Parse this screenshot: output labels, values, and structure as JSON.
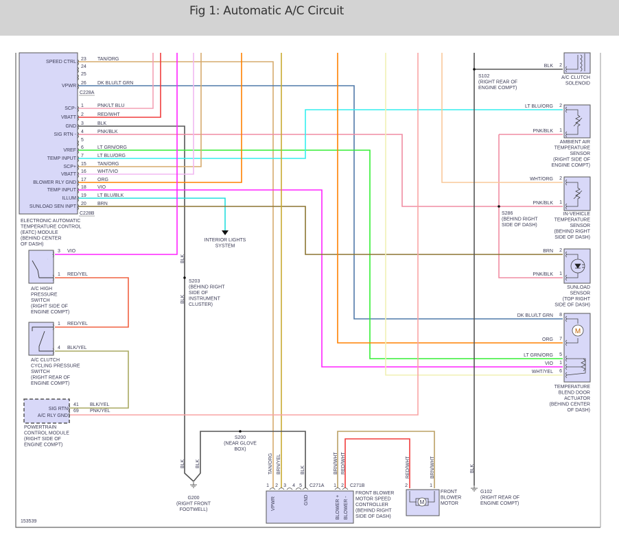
{
  "title": "Fig 1: Automatic A/C Circuit",
  "figure_id": "153539",
  "wire_colors": {
    "TAN/ORG": "#d6aa6c",
    "DK BLU/LT GRN": "#4f78a8",
    "PNK/LT BLU": "#f4a0b4",
    "RED/WHT": "#f03c3c",
    "BLK": "#555555",
    "PNK/BLK": "#f08ca2",
    "LT GRN/ORG": "#33ee33",
    "LT BLU/ORG": "#33eeee",
    "WHT/VIO": "#f2b8f2",
    "ORG": "#ff8000",
    "VIO": "#ff22ff",
    "LT BLU/BLK": "#22dede",
    "BRN": "#8b7430",
    "BRN/YEL": "#c8aa30",
    "WHT/ORG": "#f8c89a",
    "WHT/YEL": "#f0f0b4",
    "PNK/YEL": "#f8a4a4",
    "RED/YEL": "#f06040",
    "BLK/YEL": "#a8a860",
    "BRN/WHT": "#bba064"
  },
  "eatc": {
    "pins": [
      {
        "num": "23",
        "label": "SPEED CTRL",
        "wire": "TAN/ORG"
      },
      {
        "num": "24",
        "label": "",
        "wire": ""
      },
      {
        "num": "25",
        "label": "",
        "wire": ""
      },
      {
        "num": "26",
        "label": "VPWR",
        "wire": "DK BLU/LT GRN"
      },
      {
        "num": "1",
        "label": "SCP-",
        "wire": "PNK/LT BLU"
      },
      {
        "num": "2",
        "label": "VBATT",
        "wire": "RED/WHT"
      },
      {
        "num": "3",
        "label": "GND",
        "wire": "BLK"
      },
      {
        "num": "4",
        "label": "SIG RTN -",
        "wire": "PNK/BLK"
      },
      {
        "num": "5",
        "label": "",
        "wire": ""
      },
      {
        "num": "6",
        "label": "VREF",
        "wire": "LT GRN/ORG"
      },
      {
        "num": "7",
        "label": "TEMP INPUT",
        "wire": "LT BLU/ORG"
      },
      {
        "num": "15",
        "label": "SCP+",
        "wire": "TAN/ORG"
      },
      {
        "num": "16",
        "label": "VBATT",
        "wire": "WHT/VIO"
      },
      {
        "num": "17",
        "label": "BLOWER RLY GND",
        "wire": "ORG"
      },
      {
        "num": "18",
        "label": "TEMP INPUT",
        "wire": "VIO"
      },
      {
        "num": "19",
        "label": "ILLUM",
        "wire": "LT BLU/BLK"
      },
      {
        "num": "20",
        "label": "SUNLOAD SEN INPT",
        "wire": "BRN"
      }
    ],
    "connector_a": "C228A",
    "connector_b": "C228B",
    "caption": [
      "ELECTRONIC AUTOMATIC",
      "TEMPERATURE CONTROL",
      "(EATC) MODULE",
      "(BEHIND CENTER",
      "OF DASH)"
    ]
  },
  "right_components": [
    {
      "id": "clutch-solenoid",
      "caption": [
        "A/C CLUTCH",
        "SOLENOID"
      ],
      "pins": [
        {
          "num": "2",
          "wire": "BLK"
        }
      ]
    },
    {
      "id": "ambient-sensor",
      "caption": [
        "AMBIENT AIR",
        "TEMPERATURE",
        "SENSOR",
        "(RIGHT SIDE OF",
        "ENGINE COMPT)"
      ],
      "pins": [
        {
          "num": "2",
          "wire": "LT BLU/ORG"
        },
        {
          "num": "1",
          "wire": "PNK/BLK"
        }
      ]
    },
    {
      "id": "in-vehicle-sensor",
      "caption": [
        "IN-VEHICLE",
        "TEMPERATURE",
        "SENSOR",
        "(BEHIND RIGHT",
        "SIDE OF DASH)"
      ],
      "pins": [
        {
          "num": "2",
          "wire": "WHT/ORG"
        },
        {
          "num": "1",
          "wire": "PNK/BLK"
        }
      ]
    },
    {
      "id": "sunload-sensor",
      "caption": [
        "SUNLOAD",
        "SENSOR",
        "(TOP RIGHT",
        "SIDE OF DASH)"
      ],
      "pins": [
        {
          "num": "2",
          "wire": "BRN"
        },
        {
          "num": "1",
          "wire": "PNK/BLK"
        }
      ]
    },
    {
      "id": "blend-door-actuator",
      "caption": [
        "TEMPERATURE",
        "BLEND DOOR",
        "ACTUATOR",
        "(BEHIND CENTER",
        "OF DASH)"
      ],
      "pins": [
        {
          "num": "8",
          "wire": "DK BLU/LT GRN"
        },
        {
          "num": "7",
          "wire": "ORG"
        },
        {
          "num": "5",
          "wire": "LT GRN/ORG"
        },
        {
          "num": "1",
          "wire": "VIO"
        },
        {
          "num": "6",
          "wire": "WHT/YEL"
        }
      ]
    }
  ],
  "left_components": [
    {
      "id": "high-pressure-switch",
      "caption": [
        "A/C HIGH",
        "PRESSURE",
        "SWITCH",
        "(RIGHT SIDE OF",
        "ENGINE COMPT)"
      ],
      "pins": [
        {
          "num": "3",
          "wire": "VIO"
        },
        {
          "num": "1",
          "wire": "RED/YEL"
        }
      ]
    },
    {
      "id": "cycling-pressure-switch",
      "caption": [
        "A/C CLUTCH",
        "CYCLING PRESSURE",
        "SWITCH",
        "(RIGHT REAR OF",
        "ENGINE COMPT)"
      ],
      "pins": [
        {
          "num": "1",
          "wire": "RED/YEL"
        },
        {
          "num": "4",
          "wire": "BLK/YEL"
        }
      ]
    },
    {
      "id": "pcm",
      "caption": [
        "POWERTRAIN",
        "CONTROL MODULE",
        "(RIGHT SIDE OF",
        "ENGINE COMPT)"
      ],
      "pin_labels": [
        "SIG RTN",
        "A/C RLY GND"
      ],
      "pins": [
        {
          "num": "41",
          "wire": "BLK/YEL"
        },
        {
          "num": "69",
          "wire": "PNK/YEL"
        }
      ]
    }
  ],
  "splices": [
    {
      "id": "S102",
      "caption": [
        "S102",
        "(RIGHT REAR OF",
        "ENGINE COMPT)"
      ]
    },
    {
      "id": "S286",
      "caption": [
        "S286",
        "(BEHIND RIGHT",
        "SIDE OF DASH)"
      ]
    },
    {
      "id": "S203",
      "caption": [
        "S203",
        "(BEHIND RIGHT",
        "SIDE OF",
        "INSTRUMENT",
        "CLUSTER)"
      ]
    },
    {
      "id": "S200",
      "caption": [
        "S200",
        "(NEAR GLOVE",
        "BOX)"
      ]
    }
  ],
  "grounds": [
    {
      "id": "G200",
      "caption": [
        "G200",
        "(RIGHT FRONT",
        "FOOTWELL)"
      ]
    },
    {
      "id": "G102",
      "caption": [
        "G102",
        "(RIGHT REAR OF",
        "ENGINE COMPT)"
      ]
    }
  ],
  "interior_lights": [
    "INTERIOR LIGHTS",
    "SYSTEM"
  ],
  "blower_controller": {
    "caption": [
      "FRONT BLOWER",
      "MOTOR SPEED",
      "CONTROLLER",
      "(BEHIND RIGHT",
      "SIDE OF DASH)"
    ],
    "connector_a": "C271A",
    "connector_b": "C271B",
    "pins_a": [
      "1",
      "2",
      "3",
      "4",
      "5"
    ],
    "pins_b": [
      "1",
      "2"
    ],
    "terminal_labels": [
      "VPWR",
      "GND",
      "BLOWER +",
      "BLOWER -"
    ],
    "wires": [
      "TAN/ORG",
      "BRN/YEL",
      "BLK",
      "BRN/WHT",
      "RED/WHT"
    ]
  },
  "blower_motor": {
    "caption": [
      "FRONT",
      "BLOWER",
      "MOTOR"
    ],
    "pins": [
      "2",
      "1"
    ],
    "wires": [
      "RED/WHT",
      "BRN/WHT"
    ],
    "symbol": "M"
  },
  "vertical_wire_labels": {
    "s203_upper": "BLK",
    "s203_lower": "BLK",
    "g200_left": "BLK",
    "g200_right": "BLK",
    "g102": "BLK"
  }
}
